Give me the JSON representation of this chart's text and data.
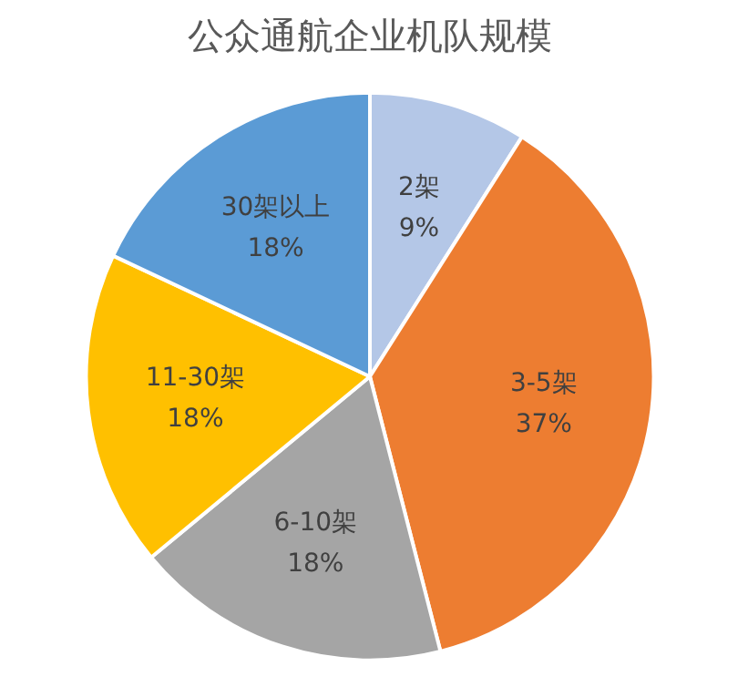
{
  "chart_data": {
    "type": "pie",
    "title": "公众通航企业机队规模",
    "categories": [
      "2架",
      "3-5架",
      "6-10架",
      "11-30架",
      "30架以上"
    ],
    "values": [
      9,
      37,
      18,
      18,
      18
    ],
    "value_labels": [
      "9%",
      "37%",
      "18%",
      "18%",
      "18%"
    ],
    "colors": [
      "#b4c7e7",
      "#ed7d31",
      "#a5a5a5",
      "#ffc000",
      "#5b9bd5"
    ]
  }
}
